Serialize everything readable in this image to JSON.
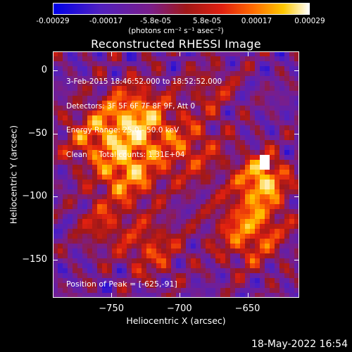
{
  "colorbar": {
    "ticks": [
      "-0.00029",
      "-0.00017",
      "-5.8e-05",
      "5.8e-05",
      "0.00017",
      "0.00029"
    ],
    "tick_values": [
      -0.00029,
      -0.00017,
      -5.8e-05,
      5.8e-05,
      0.00017,
      0.00029
    ],
    "units": "(photons cm⁻² s⁻¹ asec⁻²)"
  },
  "chart_data": {
    "type": "heatmap",
    "title": "Reconstructed RHESSI Image",
    "xlabel": "Heliocentric X (arcsec)",
    "ylabel": "Heliocentric Y (arcsec)",
    "xlim": [
      -793,
      -612
    ],
    "ylim": [
      -180,
      15
    ],
    "x_ticks": [
      -750,
      -700,
      -650
    ],
    "x_tick_labels": [
      "−750",
      "−700",
      "−650"
    ],
    "y_ticks": [
      0,
      -50,
      -100,
      -150
    ],
    "y_tick_labels": [
      "0",
      "−50",
      "−100",
      "−150"
    ],
    "value_range": [
      -0.00029,
      0.00029
    ],
    "colormap": "rhessi (blue-purple-red-orange-yellow-white)",
    "peak": [
      -625,
      -91
    ],
    "info_lines": [
      "3-Feb-2015 18:46:52.000 to 18:52:52.000",
      "Detectors: 3F 5F 6F 7F 8F 9F, Att 0",
      "Energy Range: 25.0 - 50.0 keV",
      "Clean     Total counts: 1.31E+04"
    ],
    "peak_label": "Position of Peak = [-625,-91]"
  },
  "footer": {
    "date": "18-May-2022 16:54"
  },
  "colors": {
    "colormap_stops": [
      "#0000e8",
      "#5020c0",
      "#7a1e8a",
      "#a01818",
      "#e02010",
      "#ff6a00",
      "#ffc800",
      "#ffffff"
    ]
  }
}
